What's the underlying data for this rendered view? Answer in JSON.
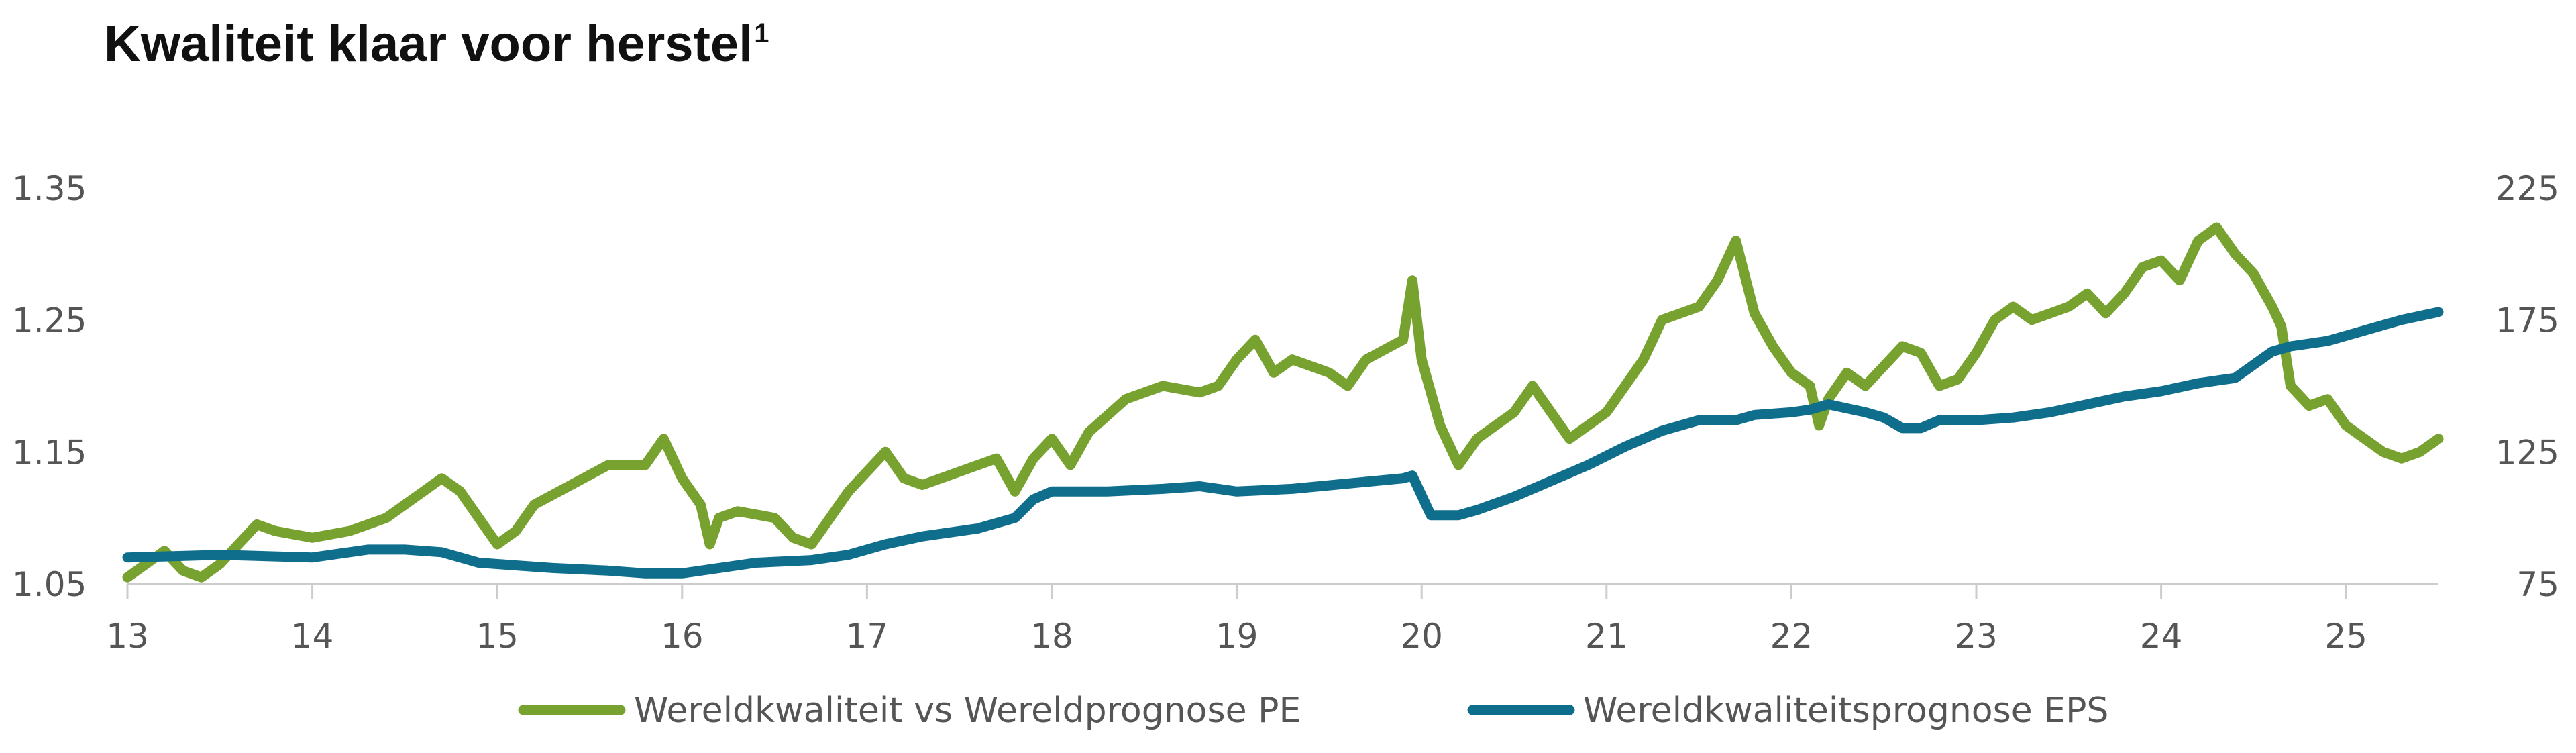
{
  "title": "Kwaliteit klaar voor herstel",
  "title_sup": "1",
  "chart_data": {
    "type": "line",
    "title": "Kwaliteit klaar voor herstel",
    "xlabel": "",
    "ylabel": "",
    "x_ticks": [
      "13",
      "14",
      "15",
      "16",
      "17",
      "18",
      "19",
      "20",
      "21",
      "22",
      "23",
      "24",
      "25"
    ],
    "xlim": [
      13,
      25.5
    ],
    "y_left": {
      "ticks": [
        "1.05",
        "1.15",
        "1.25",
        "1.35"
      ],
      "range": [
        1.05,
        1.35
      ]
    },
    "y_right": {
      "ticks": [
        "75",
        "125",
        "175",
        "225"
      ],
      "range": [
        75,
        225
      ]
    },
    "grid": false,
    "legend": "bottom",
    "series": [
      {
        "name": "Wereldkwaliteit vs Wereldprognose PE",
        "axis": "left",
        "color": "#78a22f",
        "x": [
          13.0,
          13.1,
          13.2,
          13.3,
          13.4,
          13.5,
          13.6,
          13.7,
          13.8,
          14.0,
          14.2,
          14.4,
          14.6,
          14.7,
          14.8,
          14.9,
          15.0,
          15.1,
          15.2,
          15.4,
          15.6,
          15.8,
          15.9,
          16.0,
          16.1,
          16.15,
          16.2,
          16.3,
          16.5,
          16.6,
          16.7,
          16.8,
          16.9,
          17.0,
          17.1,
          17.2,
          17.3,
          17.5,
          17.7,
          17.8,
          17.9,
          18.0,
          18.1,
          18.2,
          18.4,
          18.5,
          18.6,
          18.8,
          18.9,
          19.0,
          19.1,
          19.2,
          19.3,
          19.5,
          19.6,
          19.7,
          19.9,
          19.95,
          20.0,
          20.1,
          20.2,
          20.3,
          20.4,
          20.5,
          20.6,
          20.7,
          20.8,
          20.9,
          21.0,
          21.1,
          21.2,
          21.3,
          21.5,
          21.6,
          21.7,
          21.8,
          21.9,
          22.0,
          22.1,
          22.15,
          22.2,
          22.3,
          22.4,
          22.5,
          22.6,
          22.7,
          22.8,
          22.9,
          23.0,
          23.1,
          23.2,
          23.3,
          23.5,
          23.6,
          23.7,
          23.8,
          23.9,
          24.0,
          24.1,
          24.2,
          24.3,
          24.4,
          24.5,
          24.6,
          24.65,
          24.7,
          24.8,
          24.9,
          25.0,
          25.1,
          25.2,
          25.3,
          25.4,
          25.5
        ],
        "values": [
          1.055,
          1.065,
          1.075,
          1.06,
          1.055,
          1.065,
          1.08,
          1.095,
          1.09,
          1.085,
          1.09,
          1.1,
          1.12,
          1.13,
          1.12,
          1.1,
          1.08,
          1.09,
          1.11,
          1.125,
          1.14,
          1.14,
          1.16,
          1.13,
          1.11,
          1.08,
          1.1,
          1.105,
          1.1,
          1.085,
          1.08,
          1.1,
          1.12,
          1.135,
          1.15,
          1.13,
          1.125,
          1.135,
          1.145,
          1.12,
          1.145,
          1.16,
          1.14,
          1.165,
          1.19,
          1.195,
          1.2,
          1.195,
          1.2,
          1.22,
          1.235,
          1.21,
          1.22,
          1.21,
          1.2,
          1.22,
          1.235,
          1.28,
          1.22,
          1.17,
          1.14,
          1.16,
          1.17,
          1.18,
          1.2,
          1.18,
          1.16,
          1.17,
          1.18,
          1.2,
          1.22,
          1.25,
          1.26,
          1.28,
          1.31,
          1.255,
          1.23,
          1.21,
          1.2,
          1.17,
          1.19,
          1.21,
          1.2,
          1.215,
          1.23,
          1.225,
          1.2,
          1.205,
          1.225,
          1.25,
          1.26,
          1.25,
          1.26,
          1.27,
          1.255,
          1.27,
          1.29,
          1.295,
          1.28,
          1.31,
          1.32,
          1.3,
          1.285,
          1.26,
          1.245,
          1.2,
          1.185,
          1.19,
          1.17,
          1.16,
          1.15,
          1.145,
          1.15,
          1.16
        ]
      },
      {
        "name": "Wereldkwaliteitsprognose EPS",
        "axis": "right",
        "color": "#0f6e8c",
        "x": [
          13.0,
          13.5,
          14.0,
          14.3,
          14.5,
          14.7,
          14.9,
          15.1,
          15.3,
          15.6,
          15.8,
          16.0,
          16.2,
          16.4,
          16.7,
          16.9,
          17.1,
          17.3,
          17.6,
          17.8,
          17.9,
          18.0,
          18.3,
          18.6,
          18.8,
          19.0,
          19.3,
          19.6,
          19.9,
          19.95,
          20.05,
          20.2,
          20.3,
          20.5,
          20.7,
          20.9,
          21.1,
          21.3,
          21.5,
          21.7,
          21.8,
          22.0,
          22.1,
          22.2,
          22.4,
          22.5,
          22.6,
          22.7,
          22.8,
          23.0,
          23.2,
          23.4,
          23.6,
          23.8,
          24.0,
          24.2,
          24.4,
          24.6,
          24.7,
          24.9,
          25.1,
          25.3,
          25.5
        ],
        "values": [
          85,
          86,
          85,
          88,
          88,
          87,
          83,
          82,
          81,
          80,
          79,
          79,
          81,
          83,
          84,
          86,
          90,
          93,
          96,
          100,
          107,
          110,
          110,
          111,
          112,
          110,
          111,
          113,
          115,
          116,
          101,
          101,
          103,
          108,
          114,
          120,
          127,
          133,
          137,
          137,
          139,
          140,
          141,
          143,
          140,
          138,
          134,
          134,
          137,
          137,
          138,
          140,
          143,
          146,
          148,
          151,
          153,
          163,
          165,
          167,
          171,
          175,
          178
        ]
      }
    ]
  }
}
